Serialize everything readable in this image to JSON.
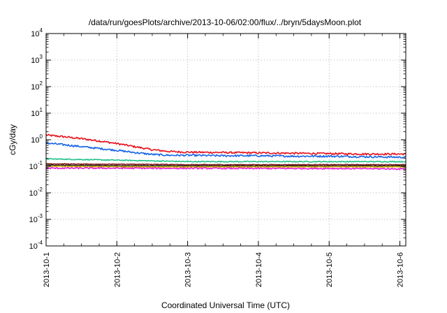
{
  "chart_data": {
    "type": "line",
    "title": "/data/run/goesPlots/archive/2013-10-06/02:00/flux/../bryn/5daysMoon.plot",
    "xlabel": "Coordinated Universal Time (UTC)",
    "ylabel": "cGy/day",
    "x_scale": "time",
    "y_scale": "log",
    "xlim": [
      "2013-10-01T00:00",
      "2013-10-06T02:00"
    ],
    "ylim": [
      0.0001,
      10000
    ],
    "grid": true,
    "legend": "none",
    "x_ticks": [
      {
        "value": "2013-10-01T00:00",
        "label": "2013-10-1"
      },
      {
        "value": "2013-10-02T00:00",
        "label": "2013-10-2"
      },
      {
        "value": "2013-10-03T00:00",
        "label": "2013-10-3"
      },
      {
        "value": "2013-10-04T00:00",
        "label": "2013-10-4"
      },
      {
        "value": "2013-10-05T00:00",
        "label": "2013-10-5"
      },
      {
        "value": "2013-10-06T00:00",
        "label": "2013-10-6"
      }
    ],
    "y_ticks": [
      {
        "value": 0.0001,
        "base": "10",
        "exp": "-4"
      },
      {
        "value": 0.001,
        "base": "10",
        "exp": "-3"
      },
      {
        "value": 0.01,
        "base": "10",
        "exp": "-2"
      },
      {
        "value": 0.1,
        "base": "10",
        "exp": "-1"
      },
      {
        "value": 1,
        "base": "10",
        "exp": "0"
      },
      {
        "value": 10,
        "base": "10",
        "exp": "1"
      },
      {
        "value": 100,
        "base": "10",
        "exp": "2"
      },
      {
        "value": 1000,
        "base": "10",
        "exp": "3"
      },
      {
        "value": 10000,
        "base": "10",
        "exp": "4"
      }
    ],
    "series": [
      {
        "color": "#e8101c",
        "noise": 0.08,
        "x": [
          "2013-10-01T00:00",
          "2013-10-01T06:00",
          "2013-10-01T12:00",
          "2013-10-01T18:00",
          "2013-10-02T00:00",
          "2013-10-02T06:00",
          "2013-10-02T12:00",
          "2013-10-02T18:00",
          "2013-10-03T00:00",
          "2013-10-03T12:00",
          "2013-10-04T00:00",
          "2013-10-04T12:00",
          "2013-10-05T00:00",
          "2013-10-05T12:00",
          "2013-10-06T00:00",
          "2013-10-06T02:00"
        ],
        "y": [
          1.5,
          1.3,
          1.1,
          0.9,
          0.72,
          0.55,
          0.42,
          0.36,
          0.34,
          0.33,
          0.32,
          0.31,
          0.3,
          0.29,
          0.29,
          0.29
        ]
      },
      {
        "color": "#1565e8",
        "noise": 0.08,
        "x": [
          "2013-10-01T00:00",
          "2013-10-01T06:00",
          "2013-10-01T12:00",
          "2013-10-01T18:00",
          "2013-10-02T00:00",
          "2013-10-02T06:00",
          "2013-10-02T12:00",
          "2013-10-02T18:00",
          "2013-10-03T00:00",
          "2013-10-03T12:00",
          "2013-10-04T00:00",
          "2013-10-04T12:00",
          "2013-10-05T00:00",
          "2013-10-05T12:00",
          "2013-10-06T00:00",
          "2013-10-06T02:00"
        ],
        "y": [
          0.75,
          0.65,
          0.55,
          0.47,
          0.4,
          0.33,
          0.28,
          0.26,
          0.26,
          0.25,
          0.25,
          0.24,
          0.24,
          0.23,
          0.22,
          0.22
        ]
      },
      {
        "color": "#22c088",
        "noise": 0.04,
        "x": [
          "2013-10-01T00:00",
          "2013-10-01T12:00",
          "2013-10-02T00:00",
          "2013-10-02T12:00",
          "2013-10-03T00:00",
          "2013-10-04T00:00",
          "2013-10-05T00:00",
          "2013-10-06T00:00",
          "2013-10-06T02:00"
        ],
        "y": [
          0.19,
          0.18,
          0.17,
          0.16,
          0.15,
          0.15,
          0.15,
          0.15,
          0.15
        ]
      },
      {
        "color": "#8a1a1a",
        "noise": 0.03,
        "x": [
          "2013-10-01T00:00",
          "2013-10-01T12:00",
          "2013-10-02T00:00",
          "2013-10-02T12:00",
          "2013-10-03T00:00",
          "2013-10-04T00:00",
          "2013-10-05T00:00",
          "2013-10-06T00:00",
          "2013-10-06T02:00"
        ],
        "y": [
          0.125,
          0.12,
          0.12,
          0.118,
          0.115,
          0.115,
          0.115,
          0.115,
          0.115
        ]
      },
      {
        "color": "#222222",
        "noise": 0.03,
        "x": [
          "2013-10-01T00:00",
          "2013-10-01T12:00",
          "2013-10-02T00:00",
          "2013-10-02T12:00",
          "2013-10-03T00:00",
          "2013-10-04T00:00",
          "2013-10-05T00:00",
          "2013-10-06T00:00",
          "2013-10-06T02:00"
        ],
        "y": [
          0.11,
          0.108,
          0.106,
          0.105,
          0.104,
          0.104,
          0.104,
          0.104,
          0.104
        ]
      },
      {
        "color": "#d4b000",
        "noise": 0.03,
        "x": [
          "2013-10-01T00:00",
          "2013-10-01T12:00",
          "2013-10-02T00:00",
          "2013-10-02T12:00",
          "2013-10-03T00:00",
          "2013-10-04T00:00",
          "2013-10-05T00:00",
          "2013-10-06T00:00",
          "2013-10-06T02:00"
        ],
        "y": [
          0.1,
          0.098,
          0.096,
          0.095,
          0.095,
          0.095,
          0.095,
          0.095,
          0.095
        ]
      },
      {
        "color": "#e81ed8",
        "noise": 0.06,
        "x": [
          "2013-10-01T00:00",
          "2013-10-01T12:00",
          "2013-10-02T00:00",
          "2013-10-02T12:00",
          "2013-10-03T00:00",
          "2013-10-04T00:00",
          "2013-10-05T00:00",
          "2013-10-06T00:00",
          "2013-10-06T02:00"
        ],
        "y": [
          0.085,
          0.085,
          0.085,
          0.084,
          0.084,
          0.083,
          0.083,
          0.08,
          0.08
        ]
      }
    ]
  }
}
